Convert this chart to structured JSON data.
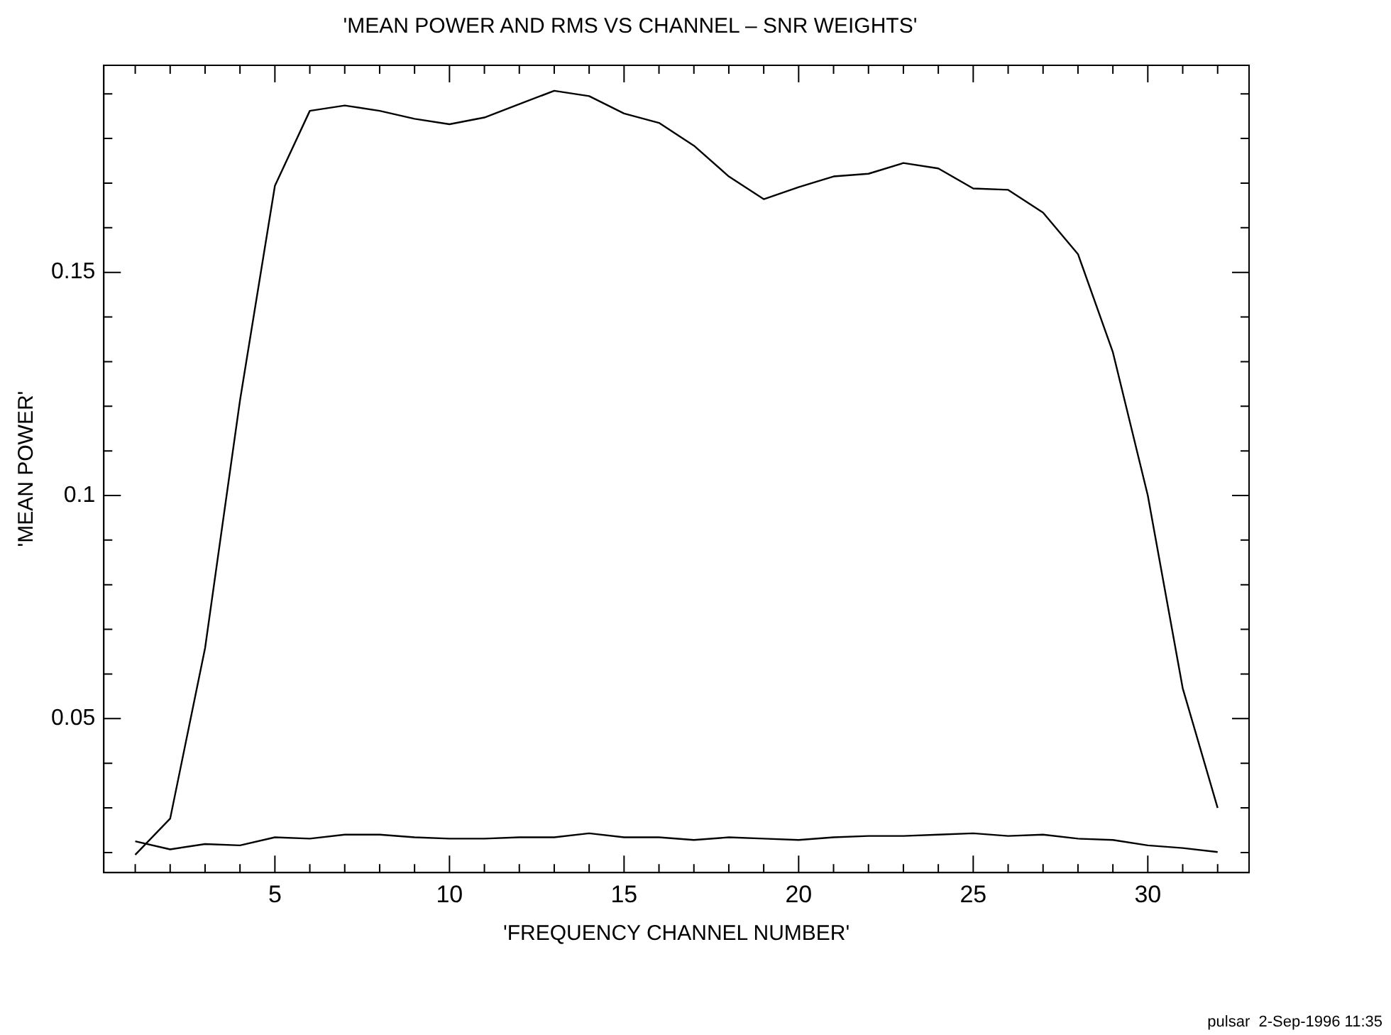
{
  "chart_data": {
    "type": "line",
    "title": "'MEAN POWER AND RMS VS CHANNEL – SNR WEIGHTS'",
    "xlabel": "'FREQUENCY CHANNEL NUMBER'",
    "ylabel": "'MEAN POWER'",
    "annotations": [
      "pulsar  2-Sep-1996 11:35"
    ],
    "x": [
      1,
      2,
      3,
      4,
      5,
      6,
      7,
      8,
      9,
      10,
      11,
      12,
      13,
      14,
      15,
      16,
      17,
      18,
      19,
      20,
      21,
      22,
      23,
      24,
      25,
      26,
      27,
      28,
      29,
      30,
      31,
      32
    ],
    "series": [
      {
        "color": "#000000",
        "values": [
          0.0195,
          0.0276,
          0.0658,
          0.1213,
          0.1694,
          0.1862,
          0.1874,
          0.1862,
          0.1844,
          0.1832,
          0.1847,
          0.1877,
          0.1907,
          0.1895,
          0.1856,
          0.1835,
          0.1784,
          0.1715,
          0.1664,
          0.1691,
          0.1715,
          0.1721,
          0.1745,
          0.1733,
          0.1688,
          0.1685,
          0.1634,
          0.1541,
          0.1321,
          0.1,
          0.0568,
          0.03
        ]
      },
      {
        "color": "#000000",
        "values": [
          0.0225,
          0.0207,
          0.0219,
          0.0216,
          0.0234,
          0.0231,
          0.024,
          0.024,
          0.0234,
          0.0231,
          0.0231,
          0.0234,
          0.0234,
          0.0243,
          0.0234,
          0.0234,
          0.0228,
          0.0234,
          0.0231,
          0.0228,
          0.0234,
          0.0237,
          0.0237,
          0.024,
          0.0243,
          0.0237,
          0.024,
          0.0231,
          0.0228,
          0.0216,
          0.021,
          0.0201
        ]
      }
    ],
    "xlim": [
      0.1,
      32.9
    ],
    "xticks": [
      {
        "value": 1,
        "label": null
      },
      {
        "value": 2,
        "label": null
      },
      {
        "value": 3,
        "label": null
      },
      {
        "value": 4,
        "label": null
      },
      5,
      {
        "value": 6,
        "label": null
      },
      {
        "value": 7,
        "label": null
      },
      {
        "value": 8,
        "label": null
      },
      {
        "value": 9,
        "label": null
      },
      10,
      {
        "value": 11,
        "label": null
      },
      {
        "value": 12,
        "label": null
      },
      {
        "value": 13,
        "label": null
      },
      {
        "value": 14,
        "label": null
      },
      15,
      {
        "value": 16,
        "label": null
      },
      {
        "value": 17,
        "label": null
      },
      {
        "value": 18,
        "label": null
      },
      {
        "value": 19,
        "label": null
      },
      20,
      {
        "value": 21,
        "label": null
      },
      {
        "value": 22,
        "label": null
      },
      {
        "value": 23,
        "label": null
      },
      {
        "value": 24,
        "label": null
      },
      25,
      {
        "value": 26,
        "label": null
      },
      {
        "value": 27,
        "label": null
      },
      {
        "value": 28,
        "label": null
      },
      {
        "value": 29,
        "label": null
      },
      30,
      {
        "value": 31,
        "label": null
      },
      {
        "value": 32,
        "label": null
      }
    ],
    "ylim": [
      0.0155,
      0.1964
    ],
    "yticks": [
      {
        "value": 0.02,
        "label": null
      },
      {
        "value": 0.03,
        "label": null
      },
      {
        "value": 0.04,
        "label": null
      },
      0.05,
      {
        "value": 0.06,
        "label": null
      },
      {
        "value": 0.07,
        "label": null
      },
      {
        "value": 0.08,
        "label": null
      },
      {
        "value": 0.09,
        "label": null
      },
      0.1,
      {
        "value": 0.11,
        "label": null
      },
      {
        "value": 0.12,
        "label": null
      },
      {
        "value": 0.13,
        "label": null
      },
      {
        "value": 0.14,
        "label": null
      },
      0.15,
      {
        "value": 0.16,
        "label": null
      },
      {
        "value": 0.17,
        "label": null
      },
      {
        "value": 0.18,
        "label": null
      },
      {
        "value": 0.19,
        "label": null
      }
    ],
    "marker": "none",
    "line_style": "solid",
    "grid": false,
    "legend": false
  }
}
